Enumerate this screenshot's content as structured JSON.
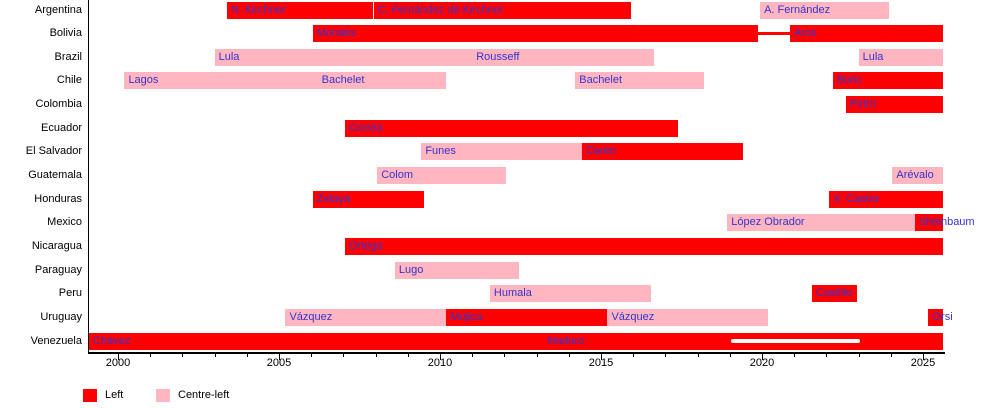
{
  "chart_data": {
    "type": "bar",
    "subtype": "gantt-timeline",
    "title": "",
    "xlabel": "",
    "ylabel": "",
    "x_range": [
      1999.07,
      2025.62
    ],
    "x_major_ticks": [
      2000,
      2005,
      2010,
      2015,
      2020,
      2025
    ],
    "x_minor_tick_interval_years": 1,
    "grid": false,
    "legend_position": "bottom-left",
    "label_color": "#3333CC",
    "axis_color": "#000000",
    "legend": [
      {
        "key": "left",
        "label": "Left",
        "color": "#FF0000"
      },
      {
        "key": "centre-left",
        "label": "Centre-left",
        "color": "#FFB6C1"
      }
    ],
    "rows": [
      {
        "country": "Argentina",
        "bars": [
          {
            "label": "N. Kirchner",
            "type": "left",
            "start": 2003.38,
            "end": 2007.92
          },
          {
            "label": "C. Fernández de Kirchner",
            "type": "left",
            "start": 2007.94,
            "end": 2015.94
          },
          {
            "label": "A. Fernández",
            "type": "centre-left",
            "start": 2019.94,
            "end": 2023.94
          }
        ]
      },
      {
        "country": "Bolivia",
        "bars": [
          {
            "label": "Morales",
            "type": "left",
            "start": 2006.05,
            "end": 2019.88
          },
          {
            "label": "Arce",
            "type": "left",
            "start": 2020.87,
            "end": 2025.62
          }
        ],
        "connector": {
          "start": 2019.88,
          "end": 2020.87,
          "color": "#FF0000"
        }
      },
      {
        "country": "Brazil",
        "bars": [
          {
            "label": "Lula",
            "type": "centre-left",
            "start": 2003.0,
            "end": 2011.0
          },
          {
            "label": "Rousseff",
            "type": "centre-left",
            "start": 2011.0,
            "end": 2016.65
          },
          {
            "label": "Lula",
            "type": "centre-left",
            "start": 2023.0,
            "end": 2025.62
          }
        ]
      },
      {
        "country": "Chile",
        "bars": [
          {
            "label": "Lagos",
            "type": "centre-left",
            "start": 2000.2,
            "end": 2006.2
          },
          {
            "label": "Bachelet",
            "type": "centre-left",
            "start": 2006.2,
            "end": 2010.2
          },
          {
            "label": "Bachelet",
            "type": "centre-left",
            "start": 2014.2,
            "end": 2018.2
          },
          {
            "label": "Boric",
            "type": "left",
            "start": 2022.2,
            "end": 2025.62
          }
        ]
      },
      {
        "country": "Colombia",
        "bars": [
          {
            "label": "Petro",
            "type": "left",
            "start": 2022.6,
            "end": 2025.62
          }
        ]
      },
      {
        "country": "Ecuador",
        "bars": [
          {
            "label": "Correa",
            "type": "left",
            "start": 2007.05,
            "end": 2017.4
          }
        ]
      },
      {
        "country": "El Salvador",
        "bars": [
          {
            "label": "Funes",
            "type": "centre-left",
            "start": 2009.42,
            "end": 2014.42
          },
          {
            "label": "Cerén",
            "type": "left",
            "start": 2014.42,
            "end": 2019.42
          }
        ]
      },
      {
        "country": "Guatemala",
        "bars": [
          {
            "label": "Colom",
            "type": "centre-left",
            "start": 2008.05,
            "end": 2012.05
          },
          {
            "label": "Arévalo",
            "type": "centre-left",
            "start": 2024.05,
            "end": 2025.62
          }
        ]
      },
      {
        "country": "Honduras",
        "bars": [
          {
            "label": "Zelaya",
            "type": "left",
            "start": 2006.05,
            "end": 2009.5
          },
          {
            "label": "X. Castro",
            "type": "left",
            "start": 2022.08,
            "end": 2025.62
          }
        ]
      },
      {
        "country": "Mexico",
        "bars": [
          {
            "label": "López Obrador",
            "type": "centre-left",
            "start": 2018.92,
            "end": 2024.75
          },
          {
            "label": "Sheinbaum",
            "type": "left",
            "start": 2024.75,
            "end": 2025.62
          }
        ]
      },
      {
        "country": "Nicaragua",
        "bars": [
          {
            "label": "Ortega",
            "type": "left",
            "start": 2007.05,
            "end": 2025.62
          }
        ]
      },
      {
        "country": "Paraguay",
        "bars": [
          {
            "label": "Lugo",
            "type": "centre-left",
            "start": 2008.6,
            "end": 2012.45
          }
        ]
      },
      {
        "country": "Peru",
        "bars": [
          {
            "label": "Humala",
            "type": "centre-left",
            "start": 2011.55,
            "end": 2016.55
          },
          {
            "label": "Castillo",
            "type": "left",
            "start": 2021.55,
            "end": 2022.95
          }
        ]
      },
      {
        "country": "Uruguay",
        "bars": [
          {
            "label": "Vázquez",
            "type": "centre-left",
            "start": 2005.2,
            "end": 2010.2
          },
          {
            "label": "Mujica",
            "type": "left",
            "start": 2010.2,
            "end": 2015.2
          },
          {
            "label": "Vázquez",
            "type": "centre-left",
            "start": 2015.2,
            "end": 2020.2
          },
          {
            "label": "Orsi",
            "type": "left",
            "start": 2025.17,
            "end": 2025.62
          }
        ]
      },
      {
        "country": "Venezuela",
        "bars": [
          {
            "label": "Chávez",
            "type": "left",
            "start": 1999.1,
            "end": 2013.2
          },
          {
            "label": "Maduro",
            "type": "left",
            "start": 2013.2,
            "end": 2025.62
          }
        ],
        "inner_line": {
          "start": 2019.05,
          "end": 2023.05,
          "color": "#FFFFFF"
        }
      }
    ]
  }
}
